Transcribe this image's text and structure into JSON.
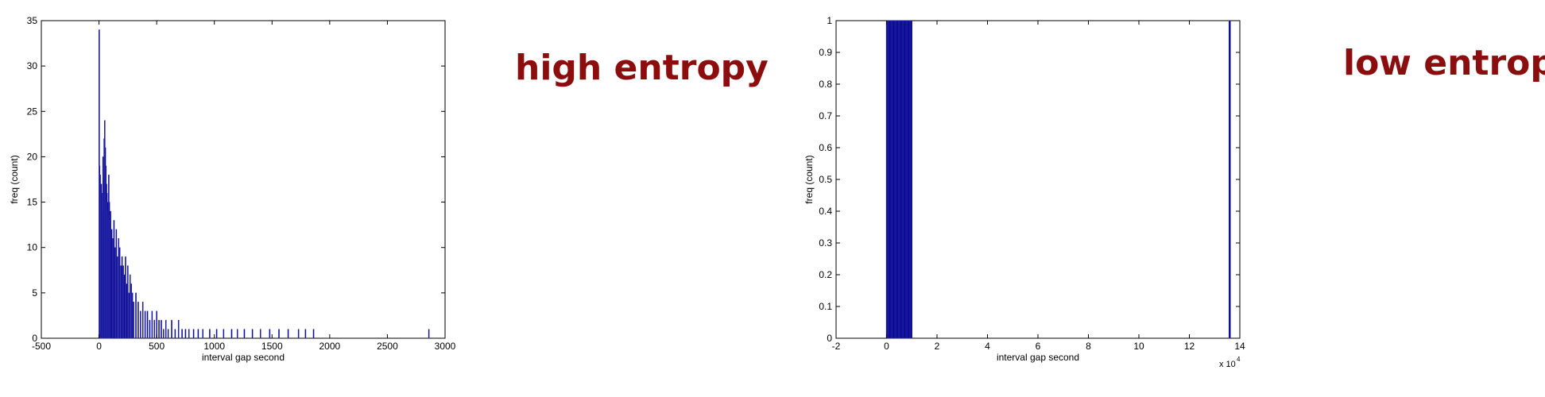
{
  "annotations": {
    "left": "high entropy",
    "right": "low entropy"
  },
  "chart_data": [
    {
      "type": "bar",
      "ylabel": "freq (count)",
      "xlabel": "interval gap second",
      "xlim": [
        -500,
        3000
      ],
      "ylim": [
        0,
        35
      ],
      "xticks": [
        "-500",
        "0",
        "500",
        "1000",
        "1500",
        "2000",
        "2500",
        "3000"
      ],
      "yticks": [
        "0",
        "5",
        "10",
        "15",
        "20",
        "25",
        "30",
        "35"
      ],
      "grid": false,
      "bar_color": "#00008b",
      "x": [
        2,
        5,
        10,
        15,
        20,
        25,
        30,
        35,
        40,
        45,
        50,
        55,
        60,
        65,
        70,
        75,
        80,
        85,
        90,
        95,
        100,
        110,
        120,
        130,
        140,
        150,
        160,
        170,
        180,
        190,
        200,
        210,
        220,
        230,
        240,
        250,
        260,
        270,
        280,
        290,
        300,
        320,
        340,
        360,
        380,
        400,
        420,
        440,
        460,
        480,
        500,
        520,
        540,
        560,
        580,
        600,
        630,
        660,
        690,
        720,
        750,
        780,
        820,
        860,
        900,
        960,
        1020,
        1080,
        1150,
        1200,
        1260,
        1330,
        1400,
        1480,
        1560,
        1640,
        1730,
        1790,
        1860,
        2860
      ],
      "values": [
        34,
        19,
        18,
        15,
        17,
        16,
        14,
        20,
        18,
        22,
        24,
        21,
        19,
        17,
        16,
        15,
        14,
        18,
        15,
        13,
        14,
        12,
        11,
        13,
        10,
        12,
        9,
        11,
        10,
        8,
        9,
        8,
        7,
        9,
        6,
        8,
        5,
        7,
        6,
        5,
        4,
        5,
        4,
        3,
        4,
        3,
        3,
        2,
        3,
        2,
        3,
        2,
        2,
        1,
        2,
        1,
        2,
        1,
        2,
        1,
        1,
        1,
        1,
        1,
        1,
        1,
        1,
        1,
        1,
        1,
        1,
        1,
        1,
        1,
        1,
        1,
        1,
        1,
        1,
        1
      ]
    },
    {
      "type": "bar",
      "ylabel": "freq (count)",
      "xlabel": "interval gap second",
      "xlim": [
        -2,
        14
      ],
      "ylim": [
        0,
        1
      ],
      "xticks": [
        "-2",
        "0",
        "2",
        "4",
        "6",
        "8",
        "10",
        "12",
        "14"
      ],
      "yticks": [
        "0",
        "0.1",
        "0.2",
        "0.3",
        "0.4",
        "0.5",
        "0.6",
        "0.7",
        "0.8",
        "0.9",
        "1"
      ],
      "x_multiplier": "x 10",
      "x_multiplier_exponent": "4",
      "grid": false,
      "bar_color": "#00008b",
      "x": [
        0.02,
        0.06,
        0.1,
        0.14,
        0.18,
        0.22,
        0.26,
        0.3,
        0.34,
        0.38,
        0.42,
        0.46,
        0.5,
        0.54,
        0.58,
        0.62,
        0.66,
        0.7,
        0.74,
        0.78,
        0.82,
        0.86,
        0.9,
        0.94,
        0.98,
        13.6
      ],
      "values": [
        1,
        1,
        1,
        1,
        1,
        1,
        1,
        1,
        1,
        1,
        1,
        1,
        1,
        1,
        1,
        1,
        1,
        1,
        1,
        1,
        1,
        1,
        1,
        1,
        1,
        1
      ]
    }
  ]
}
